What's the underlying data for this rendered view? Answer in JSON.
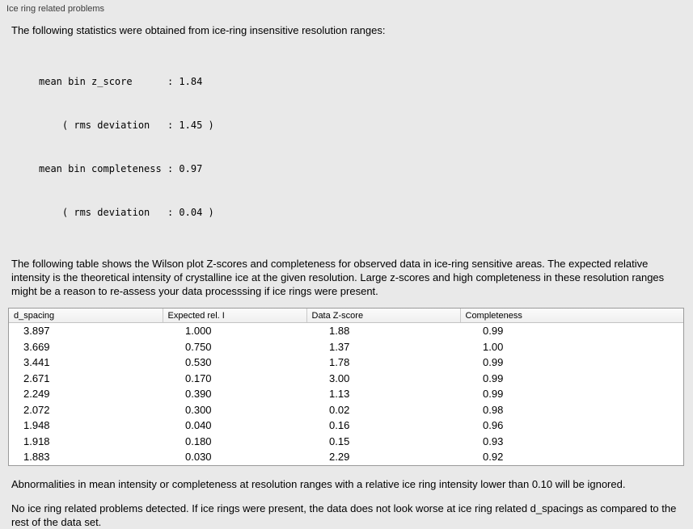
{
  "panel": {
    "title": "Ice ring related problems"
  },
  "intro": "The following statistics were obtained from ice-ring insensitive resolution ranges:",
  "stats_block": {
    "lines": [
      "mean bin z_score      : 1.84",
      "    ( rms deviation   : 1.45 )",
      "mean bin completeness : 0.97",
      "    ( rms deviation   : 0.04 )"
    ]
  },
  "table_description": "The following table shows the Wilson plot Z-scores and completeness for observed data in ice-ring sensitive areas. The expected relative intensity is the theoretical intensity of crystalline ice at the given resolution. Large z-scores and high completeness in these resolution ranges might be a reason to re-assess your data processsing if ice rings were present.",
  "table": {
    "headers": [
      "d_spacing",
      "Expected rel. I",
      "Data Z-score",
      "Completeness"
    ],
    "rows": [
      [
        "3.897",
        "1.000",
        "1.88",
        "0.99"
      ],
      [
        "3.669",
        "0.750",
        "1.37",
        "1.00"
      ],
      [
        "3.441",
        "0.530",
        "1.78",
        "0.99"
      ],
      [
        "2.671",
        "0.170",
        "3.00",
        "0.99"
      ],
      [
        "2.249",
        "0.390",
        "1.13",
        "0.99"
      ],
      [
        "2.072",
        "0.300",
        "0.02",
        "0.98"
      ],
      [
        "1.948",
        "0.040",
        "0.16",
        "0.96"
      ],
      [
        "1.918",
        "0.180",
        "0.15",
        "0.93"
      ],
      [
        "1.883",
        "0.030",
        "2.29",
        "0.92"
      ]
    ]
  },
  "ignore_note": "Abnormalities in mean intensity or completeness at resolution ranges with a relative ice ring intensity lower than 0.10 will be ignored.",
  "conclusion": "No ice ring related problems detected. If ice rings were present, the data does not look worse at ice ring related d_spacings as compared to the rest of the data set."
}
